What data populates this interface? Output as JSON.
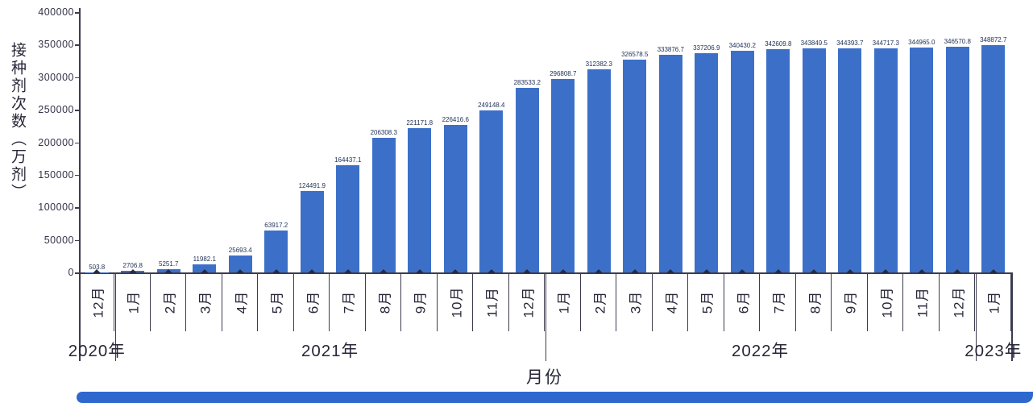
{
  "chart_data": {
    "type": "bar",
    "title": "",
    "xlabel": "月份",
    "ylabel": "接种剂次数（万剂）",
    "ylim": [
      0,
      400000
    ],
    "y_ticks": [
      0,
      50000,
      100000,
      150000,
      200000,
      250000,
      300000,
      350000,
      400000
    ],
    "grid": false,
    "legend": "none",
    "bar_color": "#3c70c8",
    "categories": [
      "12月",
      "1月",
      "2月",
      "3月",
      "4月",
      "5月",
      "6月",
      "7月",
      "8月",
      "9月",
      "10月",
      "11月",
      "12月",
      "1月",
      "2月",
      "3月",
      "4月",
      "5月",
      "6月",
      "7月",
      "8月",
      "9月",
      "10月",
      "11月",
      "12月",
      "1月"
    ],
    "values": [
      503.8,
      2706.8,
      5251.7,
      11982.1,
      25693.4,
      63917.2,
      124491.9,
      164437.1,
      206308.3,
      221171.8,
      226416.6,
      249148.4,
      283533.2,
      296808.7,
      312382.3,
      326578.5,
      333876.7,
      337206.9,
      340430.2,
      342609.8,
      343849.5,
      344393.7,
      344717.3,
      344965.0,
      346570.8,
      348872.7
    ],
    "year_groups": [
      {
        "label": "2020年",
        "months": 1
      },
      {
        "label": "2021年",
        "months": 12
      },
      {
        "label": "2022年",
        "months": 12
      },
      {
        "label": "2023年",
        "months": 1
      }
    ]
  },
  "footer": {
    "accent_bar_color": "#2e68cf"
  }
}
